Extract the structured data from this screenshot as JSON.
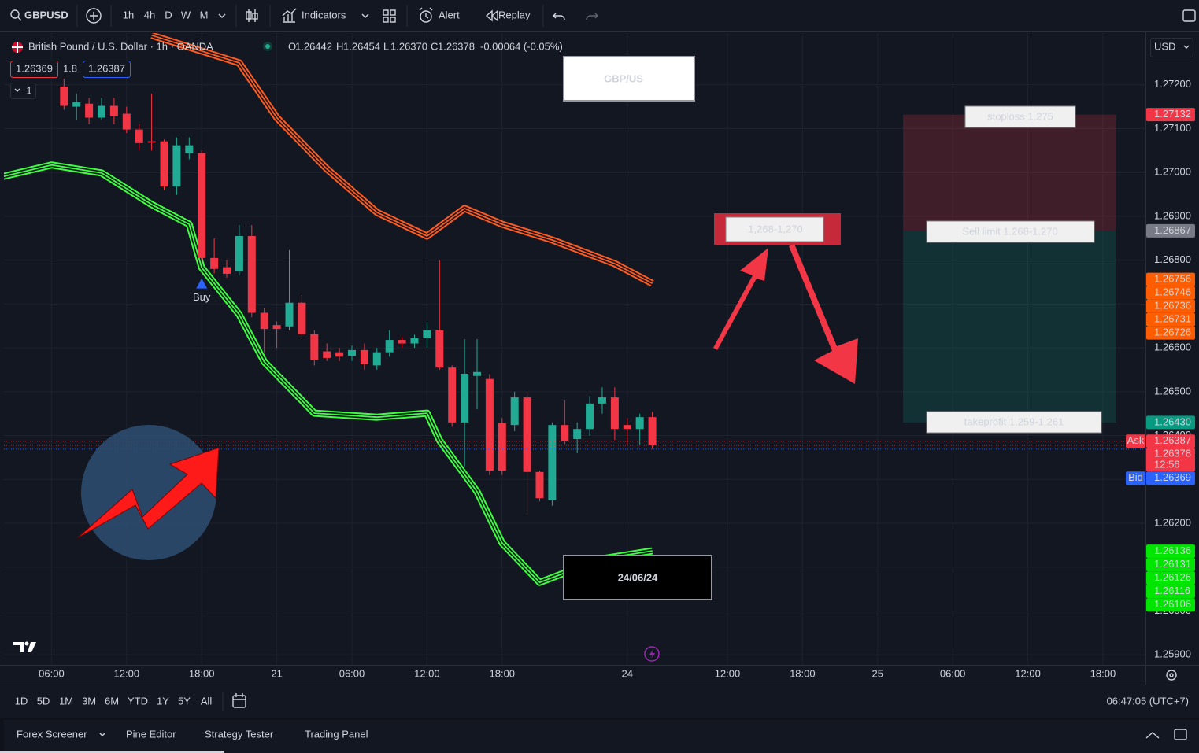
{
  "toolbar": {
    "symbol": "GBPUSD",
    "intervals": [
      "1h",
      "4h",
      "D",
      "W",
      "M"
    ],
    "indicators": "Indicators",
    "alert": "Alert",
    "replay": "Replay"
  },
  "legend": {
    "title": "British Pound / U.S. Dollar · 1h · OANDA",
    "ohlc": [
      {
        "key": "O",
        "value": "1.26442"
      },
      {
        "key": "H",
        "value": "1.26454"
      },
      {
        "key": "L",
        "value": "1.26370"
      },
      {
        "key": "C",
        "value": "1.26378"
      }
    ],
    "change": "-0.00064 (-0.05%)",
    "sell": "1.26369",
    "spread": "1.8",
    "buy": "1.26387",
    "indicator_count": "1"
  },
  "currency": "USD",
  "chart_data": {
    "type": "candlestick",
    "x": [
      1,
      2,
      3,
      4,
      5,
      6,
      7,
      8,
      9,
      10,
      11,
      12,
      13,
      14,
      15,
      16,
      17,
      18,
      19,
      20,
      21,
      22,
      23,
      24,
      25,
      26,
      27,
      28,
      29,
      30,
      31,
      32,
      33,
      34,
      35,
      36,
      37,
      38,
      39,
      40,
      41,
      42,
      43,
      44,
      45,
      46,
      47,
      48
    ],
    "open": [
      1.27196,
      1.2715,
      1.27157,
      1.27125,
      1.27152,
      1.27134,
      1.27098,
      1.27071,
      1.27071,
      1.26968,
      1.27044,
      1.27044,
      1.26805,
      1.26784,
      1.26775,
      1.26855,
      1.2668,
      1.26652,
      1.26649,
      1.26703,
      1.26631,
      1.26592,
      1.2659,
      1.26582,
      1.26595,
      1.2656,
      1.2659,
      1.26618,
      1.2661,
      1.26622,
      1.2664,
      1.26555,
      1.2643,
      1.26536,
      1.26529,
      1.26428,
      1.26424,
      1.26487,
      1.26317,
      1.26252,
      1.26424,
      1.26392,
      1.26415,
      1.26473,
      1.26487,
      1.26424,
      1.26415,
      1.26442
    ],
    "high": [
      1.27214,
      1.2718,
      1.2717,
      1.2717,
      1.2717,
      1.2715,
      1.2711,
      1.2718,
      1.27075,
      1.2708,
      1.2708,
      1.2705,
      1.2685,
      1.268,
      1.2688,
      1.2688,
      1.2669,
      1.2666,
      1.26823,
      1.2672,
      1.2664,
      1.2661,
      1.266,
      1.26605,
      1.2661,
      1.266,
      1.2664,
      1.26625,
      1.2663,
      1.2666,
      1.268,
      1.2656,
      1.2662,
      1.2662,
      1.2654,
      1.2644,
      1.265,
      1.265,
      1.2632,
      1.2643,
      1.2648,
      1.2643,
      1.2649,
      1.2651,
      1.2651,
      1.2644,
      1.2645,
      1.26454
    ],
    "low": [
      1.27143,
      1.2712,
      1.2711,
      1.2712,
      1.2711,
      1.2709,
      1.2705,
      1.2705,
      1.2696,
      1.26949,
      1.2703,
      1.268,
      1.2677,
      1.2676,
      1.26765,
      1.2667,
      1.2659,
      1.266,
      1.2664,
      1.2662,
      1.2656,
      1.2657,
      1.2657,
      1.2657,
      1.2655,
      1.2655,
      1.2658,
      1.266,
      1.266,
      1.266,
      1.2655,
      1.2642,
      1.2633,
      1.2646,
      1.2631,
      1.2631,
      1.2641,
      1.2622,
      1.2625,
      1.2624,
      1.2638,
      1.2636,
      1.264,
      1.2645,
      1.2639,
      1.2638,
      1.2638,
      1.2637
    ],
    "close": [
      1.27152,
      1.2716,
      1.27125,
      1.27152,
      1.27128,
      1.27098,
      1.27067,
      1.27068,
      1.26968,
      1.27062,
      1.27062,
      1.26805,
      1.2678,
      1.26769,
      1.26855,
      1.2668,
      1.26643,
      1.26643,
      1.26703,
      1.26631,
      1.26572,
      1.26577,
      1.2658,
      1.26595,
      1.26563,
      1.2659,
      1.26618,
      1.2661,
      1.26622,
      1.2664,
      1.26555,
      1.2643,
      1.26541,
      1.26545,
      1.2632,
      1.2632,
      1.26487,
      1.26317,
      1.26257,
      1.26424,
      1.26388,
      1.26415,
      1.26473,
      1.26487,
      1.26415,
      1.26415,
      1.26442,
      1.26378
    ],
    "up_color": "#22ab94",
    "down_color": "#f23645",
    "indicators": [
      {
        "color": "#ff5a1f",
        "x": [
          8,
          15,
          18,
          22,
          26,
          30,
          33,
          36,
          40,
          45,
          48
        ],
        "values": [
          1.27313,
          1.2725,
          1.27125,
          1.27008,
          1.26909,
          1.26855,
          1.26918,
          1.26882,
          1.26846,
          1.26792,
          1.26747
        ]
      },
      {
        "color": "#3cff3c",
        "x": [
          -4,
          0,
          4,
          8,
          11,
          12,
          15,
          17,
          21,
          26,
          30,
          31,
          34,
          36,
          39,
          44,
          48
        ],
        "values": [
          1.2699,
          1.27017,
          1.26999,
          1.26927,
          1.26882,
          1.26783,
          1.26676,
          1.26568,
          1.26451,
          1.26442,
          1.26451,
          1.26389,
          1.26272,
          1.26155,
          1.26065,
          1.26119,
          1.26137
        ]
      }
    ],
    "signals": [
      {
        "x": 12,
        "label": "Buy",
        "color": "#2962ff"
      }
    ],
    "xlim": [
      -3.8,
      87.4
    ],
    "ylim": [
      1.25877,
      1.27318
    ],
    "xticks": [
      {
        "value": 0,
        "label": "06:00"
      },
      {
        "value": 6,
        "label": "12:00"
      },
      {
        "value": 12,
        "label": "18:00"
      },
      {
        "value": 18,
        "label": "21"
      },
      {
        "value": 24,
        "label": "06:00"
      },
      {
        "value": 30,
        "label": "12:00"
      },
      {
        "value": 36,
        "label": "18:00"
      },
      {
        "value": 46,
        "label": "24"
      },
      {
        "value": 54,
        "label": "12:00"
      },
      {
        "value": 60,
        "label": "18:00"
      },
      {
        "value": 66,
        "label": "25"
      },
      {
        "value": 72,
        "label": "06:00"
      },
      {
        "value": 78,
        "label": "12:00"
      },
      {
        "value": 84,
        "label": "18:00"
      }
    ],
    "yticks": [
      {
        "value": 1.272,
        "label": "1.27200"
      },
      {
        "value": 1.271,
        "label": "1.27100"
      },
      {
        "value": 1.27,
        "label": "1.27000"
      },
      {
        "value": 1.269,
        "label": "1.26900"
      },
      {
        "value": 1.268,
        "label": "1.26800"
      },
      {
        "value": 1.267,
        "label": "1.26700"
      },
      {
        "value": 1.266,
        "label": "1.26600"
      },
      {
        "value": 1.265,
        "label": "1.26500"
      },
      {
        "value": 1.264,
        "label": "1.26400"
      },
      {
        "value": 1.263,
        "label": "1.26300"
      },
      {
        "value": 1.262,
        "label": "1.26200"
      },
      {
        "value": 1.261,
        "label": "1.26100"
      },
      {
        "value": 1.26,
        "label": "1.26000"
      },
      {
        "value": 1.259,
        "label": "1.25900"
      }
    ],
    "grid": true,
    "position": {
      "stop": 1.27132,
      "entry": 1.26867,
      "target": 1.2643
    },
    "price_tags": [
      {
        "value": 1.27132,
        "label": "1.27132",
        "color": "#f23645",
        "text_color": "#ffffff"
      },
      {
        "value": 1.26867,
        "label": "1.26867",
        "color": "#787b86",
        "text_color": "#ffffff"
      },
      {
        "value": 1.26756,
        "label": "1.26756",
        "color": "#ff5d00",
        "text_color": "#ffffff"
      },
      {
        "value": 1.26746,
        "label": "1.26746",
        "color": "#ff5d00",
        "text_color": "#ffffff"
      },
      {
        "value": 1.26736,
        "label": "1.26736",
        "color": "#ff5d00",
        "text_color": "#ffffff"
      },
      {
        "value": 1.26731,
        "label": "1.26731",
        "color": "#ff5d00",
        "text_color": "#ffffff"
      },
      {
        "value": 1.26726,
        "label": "1.26726",
        "color": "#ff5d00",
        "text_color": "#ffffff"
      },
      {
        "value": 1.2643,
        "label": "1.26430",
        "color": "#089981",
        "text_color": "#ffffff"
      },
      {
        "value": 1.26387,
        "label": "1.26387",
        "color": "#f23645",
        "text_color": "#ffffff",
        "prefix": "Ask"
      },
      {
        "value": 1.26378,
        "label": "1.26378",
        "color": "#f23645",
        "text_color": "#ffffff",
        "timer": "12:56"
      },
      {
        "value": 1.26369,
        "label": "1.26369",
        "color": "#2962ff",
        "text_color": "#ffffff",
        "prefix": "Bid"
      },
      {
        "value": 1.26136,
        "label": "1.26136",
        "color": "#00e600",
        "text_color": "#131722"
      },
      {
        "value": 1.26131,
        "label": "1.26131",
        "color": "#00e600",
        "text_color": "#131722"
      },
      {
        "value": 1.26126,
        "label": "1.26126",
        "color": "#00e600",
        "text_color": "#131722"
      },
      {
        "value": 1.26116,
        "label": "1.26116",
        "color": "#00e600",
        "text_color": "#131722"
      },
      {
        "value": 1.26106,
        "label": "1.26106",
        "color": "#00e600",
        "text_color": "#131722"
      }
    ]
  },
  "annotations": {
    "pair": "GBP/US",
    "zone": "1,268-1,270",
    "stoploss": "stoploss 1.275",
    "sell_limit": "Sell limit 1.268-1.270",
    "takeprofit": "takeprofit 1.259-1,261",
    "date": "24/06/24"
  },
  "range_buttons": [
    "1D",
    "5D",
    "1M",
    "3M",
    "6M",
    "YTD",
    "1Y",
    "5Y",
    "All"
  ],
  "clock": "06:47:05 (UTC+7)",
  "bottom_tabs": [
    "Forex Screener",
    "Pine Editor",
    "Strategy Tester",
    "Trading Panel"
  ]
}
